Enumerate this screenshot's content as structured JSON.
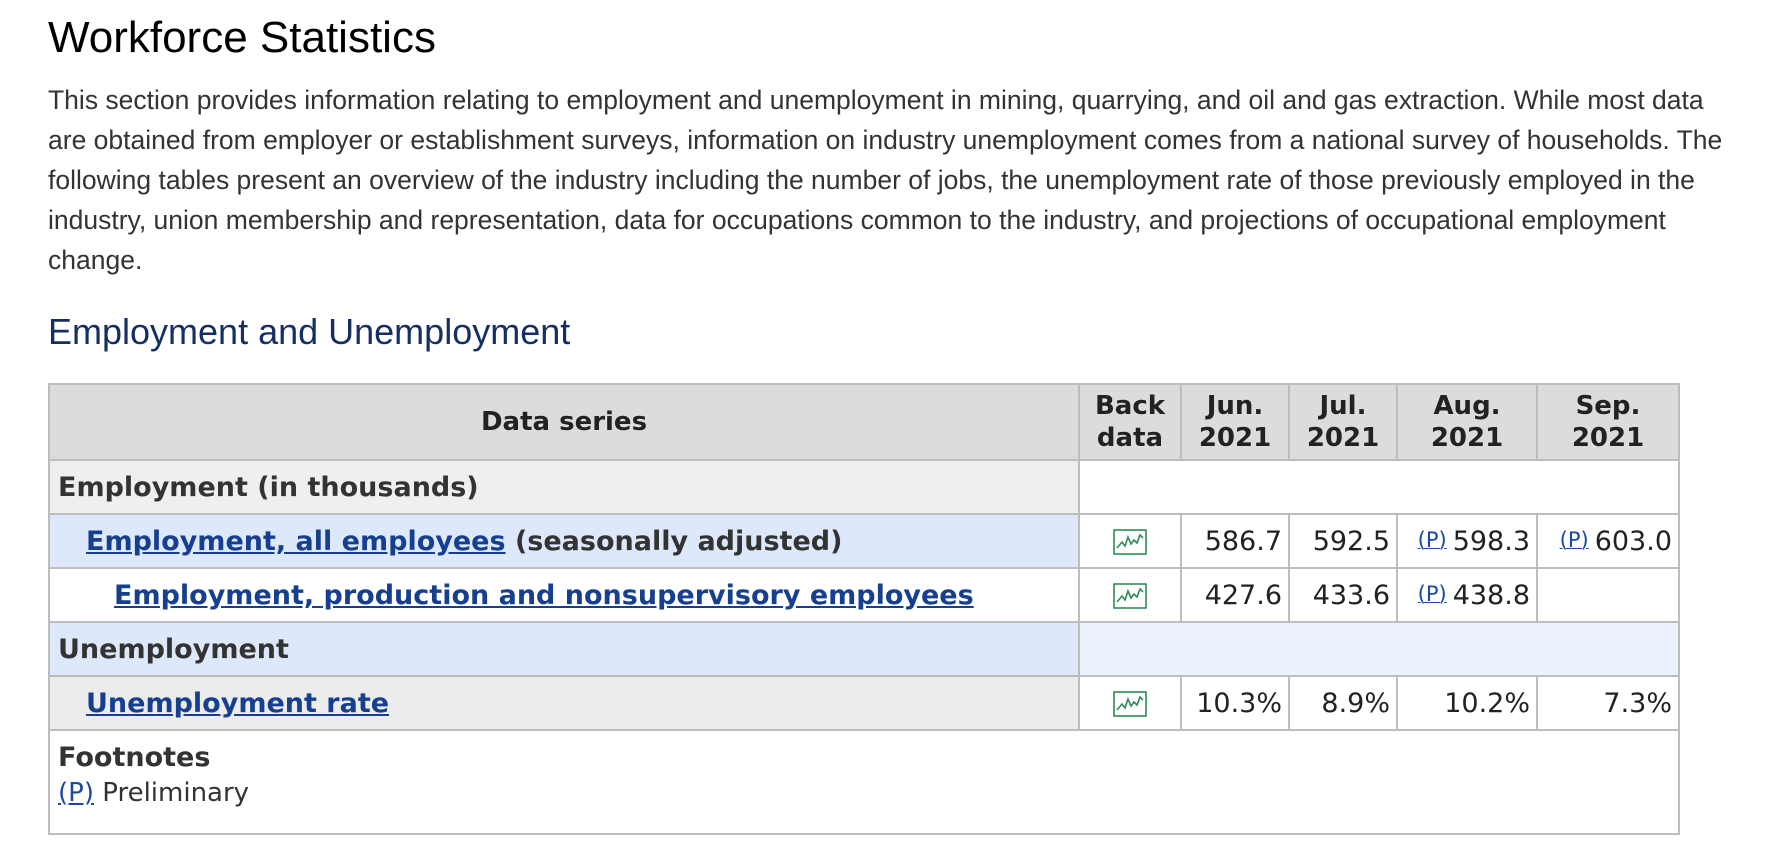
{
  "page": {
    "title": "Workforce Statistics",
    "intro": "This section provides information relating to employment and unemployment in mining, quarrying, and oil and gas extraction. While most data are obtained from employer or establishment surveys, information on industry unemployment comes from a national survey of households. The following tables present an overview of the industry including the number of jobs, the unemployment rate of those previously employed in the industry, union membership and representation, data for occupations common to the industry, and projections of occupational employment change.",
    "section_heading": "Employment and Unemployment"
  },
  "table": {
    "headers": {
      "series": "Data series",
      "back_line1": "Back",
      "back_line2": "data",
      "months": [
        {
          "line1": "Jun.",
          "line2": "2021"
        },
        {
          "line1": "Jul.",
          "line2": "2021"
        },
        {
          "line1": "Aug.",
          "line2": "2021"
        },
        {
          "line1": "Sep.",
          "line2": "2021"
        }
      ]
    },
    "sections": [
      {
        "label": "Employment (in thousands)"
      },
      {
        "label": "Unemployment"
      }
    ],
    "rows": [
      {
        "link": "Employment, all employees",
        "suffix": " (seasonally adjusted)",
        "values": [
          "586.7",
          "592.5",
          "598.3",
          "603.0"
        ],
        "marks": [
          "",
          "",
          "(P)",
          "(P)"
        ]
      },
      {
        "link": "Employment, production and nonsupervisory employees",
        "suffix": "",
        "values": [
          "427.6",
          "433.6",
          "438.8",
          ""
        ],
        "marks": [
          "",
          "",
          "(P)",
          ""
        ]
      },
      {
        "link": "Unemployment rate",
        "suffix": "",
        "values": [
          "10.3%",
          "8.9%",
          "10.2%",
          "7.3%"
        ],
        "marks": [
          "",
          "",
          "",
          ""
        ]
      }
    ],
    "footnotes": {
      "title": "Footnotes",
      "mark": "(P)",
      "text": " Preliminary"
    }
  },
  "icons": {
    "back_data": "line-chart-icon"
  },
  "colors": {
    "heading_blue": "#162f63",
    "link_blue": "#163f8f",
    "icon_green": "#2e8b57"
  }
}
